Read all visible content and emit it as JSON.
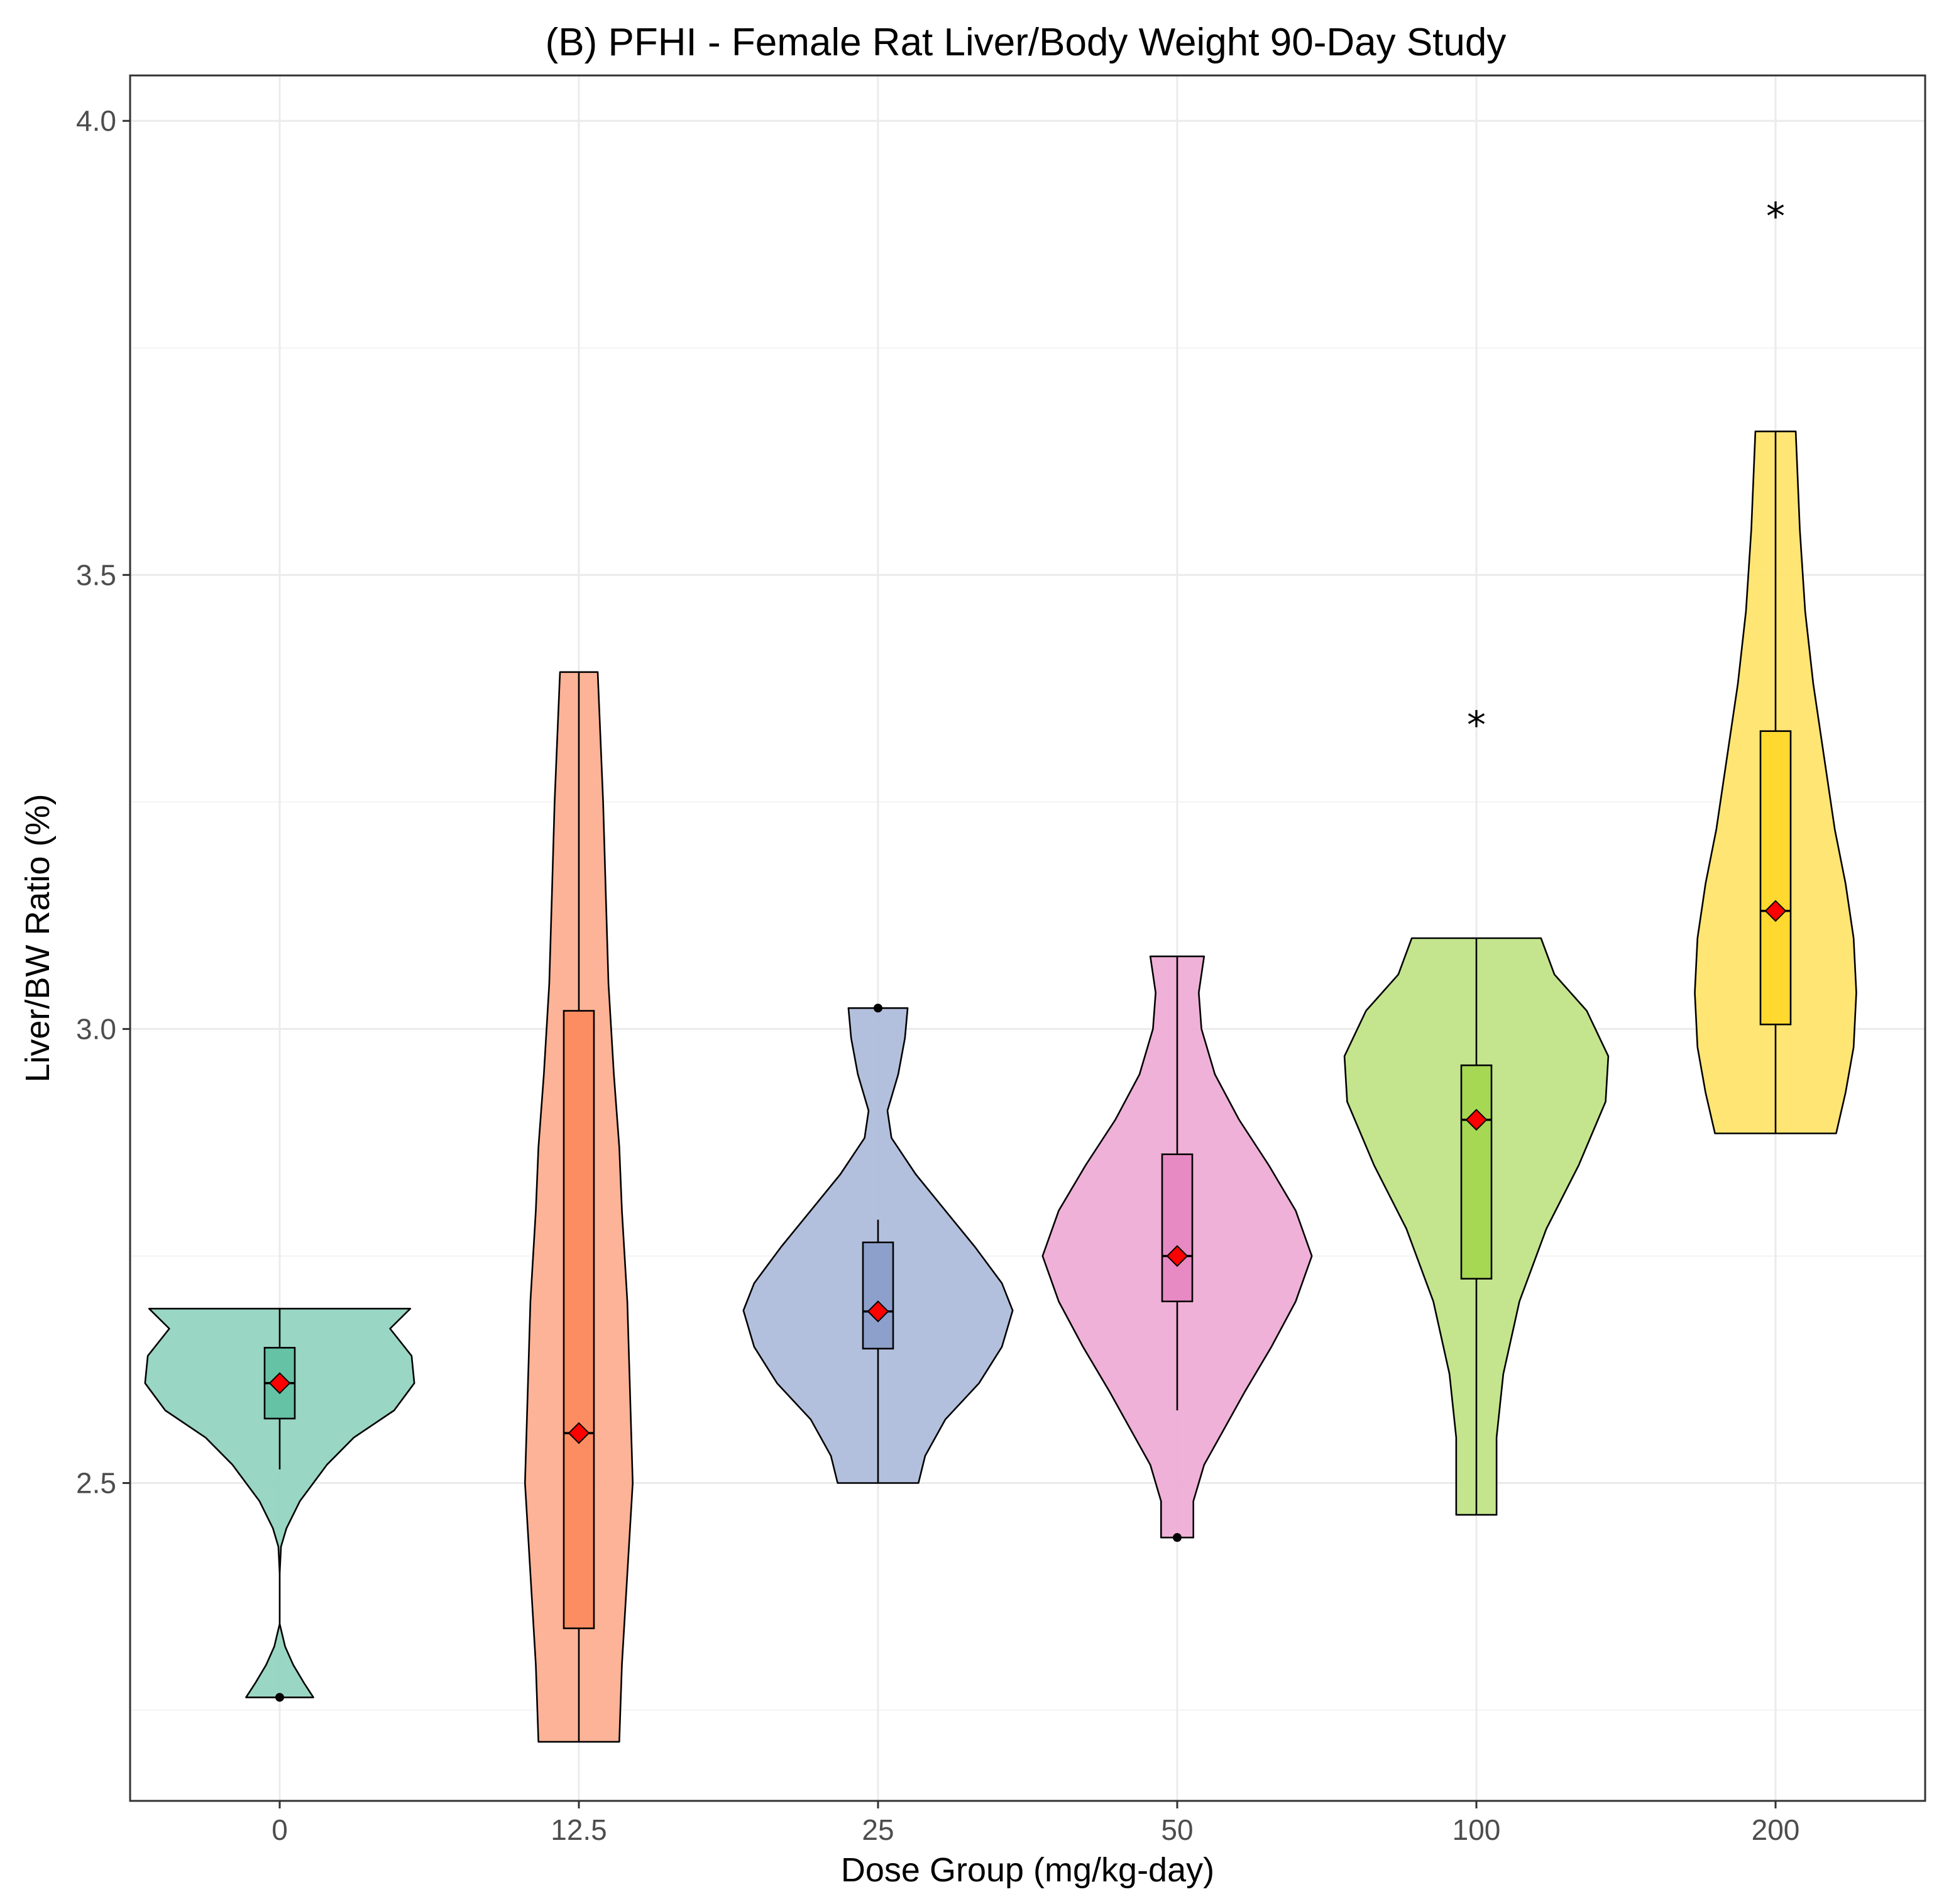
{
  "chart_data": {
    "type": "violin",
    "title": "(B) PFHI - Female Rat Liver/Body Weight 90-Day Study",
    "xlabel": "Dose Group (mg/kg-day)",
    "ylabel": "Liver/BW Ratio (%)",
    "ylim": [
      2.15,
      4.05
    ],
    "yticks": [
      "2.5",
      "3.0",
      "3.5",
      "4.0"
    ],
    "grid": true,
    "categories": [
      "0",
      "12.5",
      "25",
      "50",
      "100",
      "200"
    ],
    "groups": [
      {
        "name": "0",
        "color": "#66c2a5",
        "min": 2.264,
        "max": 2.692,
        "q1": 2.571,
        "median": 2.61,
        "q3": 2.649,
        "whisker_low": 2.515,
        "whisker_high": 2.692,
        "mean": 2.61,
        "outliers": [
          2.264
        ],
        "significant": false,
        "density": [
          [
            2.264,
            0.25
          ],
          [
            2.28,
            0.18
          ],
          [
            2.3,
            0.1
          ],
          [
            2.32,
            0.04
          ],
          [
            2.345,
            0.0
          ],
          [
            2.4,
            0.0
          ],
          [
            2.43,
            0.01
          ],
          [
            2.45,
            0.05
          ],
          [
            2.48,
            0.15
          ],
          [
            2.52,
            0.35
          ],
          [
            2.55,
            0.55
          ],
          [
            2.58,
            0.85
          ],
          [
            2.61,
            1.0
          ],
          [
            2.64,
            0.98
          ],
          [
            2.67,
            0.82
          ],
          [
            2.692,
            0.97
          ]
        ]
      },
      {
        "name": "12.5",
        "color": "#fc8d62",
        "min": 2.215,
        "max": 3.393,
        "q1": 2.34,
        "median": 2.555,
        "q3": 3.02,
        "whisker_low": 2.215,
        "whisker_high": 3.393,
        "mean": 2.555,
        "outliers": [],
        "significant": false,
        "density": [
          [
            2.215,
            0.3
          ],
          [
            2.3,
            0.32
          ],
          [
            2.4,
            0.36
          ],
          [
            2.5,
            0.4
          ],
          [
            2.6,
            0.38
          ],
          [
            2.7,
            0.36
          ],
          [
            2.8,
            0.32
          ],
          [
            2.87,
            0.3
          ],
          [
            2.95,
            0.26
          ],
          [
            3.05,
            0.22
          ],
          [
            3.15,
            0.2
          ],
          [
            3.25,
            0.18
          ],
          [
            3.393,
            0.14
          ]
        ]
      },
      {
        "name": "25",
        "color": "#8da0cb",
        "min": 2.5,
        "max": 3.023,
        "q1": 2.648,
        "median": 2.689,
        "q3": 2.765,
        "whisker_low": 2.5,
        "whisker_high": 2.79,
        "mean": 2.689,
        "outliers": [
          3.023
        ],
        "significant": false,
        "density": [
          [
            2.5,
            0.3
          ],
          [
            2.53,
            0.35
          ],
          [
            2.57,
            0.5
          ],
          [
            2.61,
            0.75
          ],
          [
            2.65,
            0.92
          ],
          [
            2.69,
            1.0
          ],
          [
            2.72,
            0.92
          ],
          [
            2.76,
            0.72
          ],
          [
            2.8,
            0.5
          ],
          [
            2.84,
            0.28
          ],
          [
            2.88,
            0.1
          ],
          [
            2.91,
            0.07
          ],
          [
            2.95,
            0.15
          ],
          [
            2.99,
            0.2
          ],
          [
            3.023,
            0.22
          ]
        ]
      },
      {
        "name": "50",
        "color": "#e78ac3",
        "min": 2.44,
        "max": 3.08,
        "q1": 2.7,
        "median": 2.75,
        "q3": 2.862,
        "whisker_low": 2.58,
        "whisker_high": 3.08,
        "mean": 2.75,
        "outliers": [
          2.44
        ],
        "significant": false,
        "density": [
          [
            2.44,
            0.12
          ],
          [
            2.48,
            0.12
          ],
          [
            2.52,
            0.2
          ],
          [
            2.56,
            0.35
          ],
          [
            2.6,
            0.5
          ],
          [
            2.65,
            0.7
          ],
          [
            2.7,
            0.88
          ],
          [
            2.75,
            1.0
          ],
          [
            2.8,
            0.88
          ],
          [
            2.85,
            0.68
          ],
          [
            2.9,
            0.46
          ],
          [
            2.95,
            0.28
          ],
          [
            3.0,
            0.18
          ],
          [
            3.04,
            0.16
          ],
          [
            3.08,
            0.2
          ]
        ]
      },
      {
        "name": "100",
        "color": "#a6d854",
        "min": 2.465,
        "max": 3.1,
        "q1": 2.725,
        "median": 2.9,
        "q3": 2.96,
        "whisker_low": 2.465,
        "whisker_high": 3.1,
        "mean": 2.9,
        "outliers": [],
        "significant": true,
        "significance_label": "*",
        "significance_y": 3.34,
        "density": [
          [
            2.465,
            0.15
          ],
          [
            2.55,
            0.15
          ],
          [
            2.62,
            0.2
          ],
          [
            2.7,
            0.32
          ],
          [
            2.78,
            0.52
          ],
          [
            2.85,
            0.76
          ],
          [
            2.92,
            0.96
          ],
          [
            2.97,
            0.98
          ],
          [
            3.02,
            0.82
          ],
          [
            3.06,
            0.58
          ],
          [
            3.1,
            0.48
          ]
        ]
      },
      {
        "name": "200",
        "color": "#ffd92f",
        "min": 2.885,
        "max": 3.658,
        "q1": 3.005,
        "median": 3.13,
        "q3": 3.328,
        "whisker_low": 2.885,
        "whisker_high": 3.658,
        "mean": 3.13,
        "outliers": [],
        "significant": true,
        "significance_label": "*",
        "significance_y": 3.9,
        "density": [
          [
            2.885,
            0.45
          ],
          [
            2.93,
            0.52
          ],
          [
            2.98,
            0.58
          ],
          [
            3.04,
            0.6
          ],
          [
            3.1,
            0.58
          ],
          [
            3.16,
            0.52
          ],
          [
            3.22,
            0.44
          ],
          [
            3.3,
            0.36
          ],
          [
            3.38,
            0.28
          ],
          [
            3.46,
            0.22
          ],
          [
            3.55,
            0.18
          ],
          [
            3.658,
            0.15
          ]
        ]
      }
    ]
  }
}
